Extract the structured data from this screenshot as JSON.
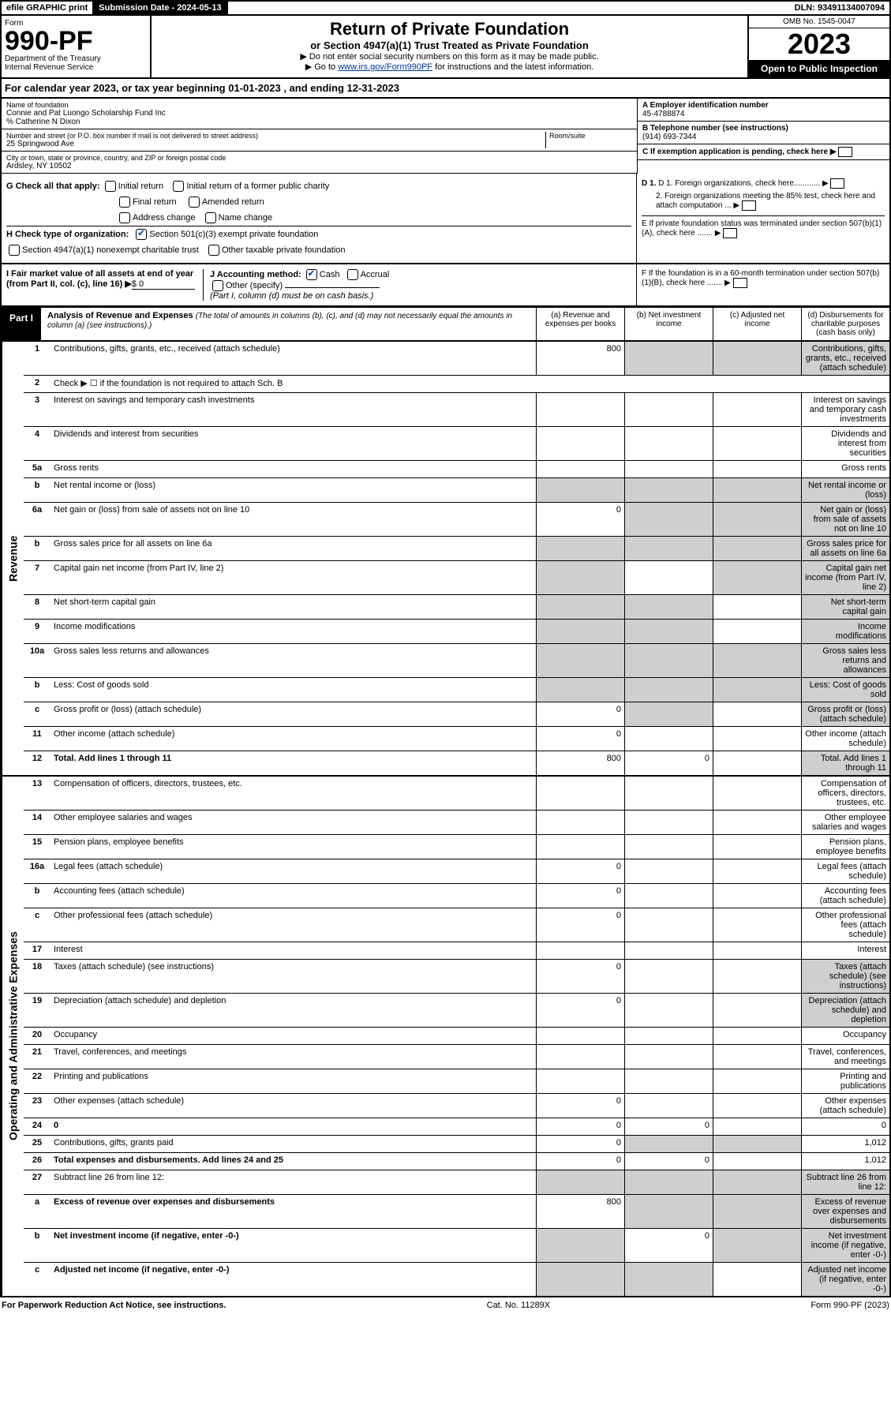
{
  "topbar": {
    "efile": "efile GRAPHIC print",
    "submission": "Submission Date - 2024-05-13",
    "dln": "DLN: 93491134007094"
  },
  "header": {
    "form": "Form",
    "number": "990-PF",
    "dept1": "Department of the Treasury",
    "dept2": "Internal Revenue Service",
    "title": "Return of Private Foundation",
    "subtitle": "or Section 4947(a)(1) Trust Treated as Private Foundation",
    "instr1": "▶ Do not enter social security numbers on this form as it may be made public.",
    "instr2_pre": "▶ Go to ",
    "instr2_link": "www.irs.gov/Form990PF",
    "instr2_post": " for instructions and the latest information.",
    "omb": "OMB No. 1545-0047",
    "year": "2023",
    "open": "Open to Public Inspection"
  },
  "cal_year": "For calendar year 2023, or tax year beginning 01-01-2023                          , and ending 12-31-2023",
  "info": {
    "name_label": "Name of foundation",
    "name": "Connie and Pat Luongo Scholarship Fund Inc",
    "care_of": "% Catherine N Dixon",
    "street_label": "Number and street (or P.O. box number if mail is not delivered to street address)",
    "street": "25 Springwood Ave",
    "room_label": "Room/suite",
    "city_label": "City or town, state or province, country, and ZIP or foreign postal code",
    "city": "Ardsley, NY  10502",
    "a_label": "A Employer identification number",
    "a_value": "45-4788874",
    "b_label": "B Telephone number (see instructions)",
    "b_value": "(914) 693-7344",
    "c_label": "C If exemption application is pending, check here"
  },
  "checks": {
    "g_label": "G Check all that apply:",
    "g_opts": [
      "Initial return",
      "Initial return of a former public charity",
      "Final return",
      "Amended return",
      "Address change",
      "Name change"
    ],
    "h_label": "H Check type of organization:",
    "h_opt1": "Section 501(c)(3) exempt private foundation",
    "h_opt2": "Section 4947(a)(1) nonexempt charitable trust",
    "h_opt3": "Other taxable private foundation",
    "i_label": "I Fair market value of all assets at end of year (from Part II, col. (c), line 16)",
    "i_value": "$  0",
    "j_label": "J Accounting method:",
    "j_cash": "Cash",
    "j_accrual": "Accrual",
    "j_other": "Other (specify)",
    "j_note": "(Part I, column (d) must be on cash basis.)",
    "d1": "D 1. Foreign organizations, check here............",
    "d2": "2. Foreign organizations meeting the 85% test, check here and attach computation ...",
    "e": "E  If private foundation status was terminated under section 507(b)(1)(A), check here .......",
    "f": "F  If the foundation is in a 60-month termination under section 507(b)(1)(B), check here ......."
  },
  "part1": {
    "label": "Part I",
    "title": "Analysis of Revenue and Expenses",
    "note": "(The total of amounts in columns (b), (c), and (d) may not necessarily equal the amounts in column (a) (see instructions).)",
    "col_a": "(a)   Revenue and expenses per books",
    "col_b": "(b)   Net investment income",
    "col_c": "(c)   Adjusted net income",
    "col_d": "(d)   Disbursements for charitable purposes (cash basis only)"
  },
  "side_labels": {
    "rev": "Revenue",
    "exp": "Operating and Administrative Expenses"
  },
  "rows": [
    {
      "n": "1",
      "d": "Contributions, gifts, grants, etc., received (attach schedule)",
      "a": "800",
      "grey": [
        "b",
        "c",
        "d"
      ]
    },
    {
      "n": "2",
      "d": "Check ▶ ☐ if the foundation is not required to attach Sch. B",
      "nocols": true
    },
    {
      "n": "3",
      "d": "Interest on savings and temporary cash investments"
    },
    {
      "n": "4",
      "d": "Dividends and interest from securities"
    },
    {
      "n": "5a",
      "d": "Gross rents"
    },
    {
      "n": "b",
      "d": "Net rental income or (loss)",
      "short": true,
      "grey": [
        "a",
        "b",
        "c",
        "d"
      ]
    },
    {
      "n": "6a",
      "d": "Net gain or (loss) from sale of assets not on line 10",
      "a": "0",
      "grey": [
        "b",
        "c",
        "d"
      ]
    },
    {
      "n": "b",
      "d": "Gross sales price for all assets on line 6a",
      "short": true,
      "grey": [
        "a",
        "b",
        "c",
        "d"
      ]
    },
    {
      "n": "7",
      "d": "Capital gain net income (from Part IV, line 2)",
      "grey": [
        "a",
        "c",
        "d"
      ]
    },
    {
      "n": "8",
      "d": "Net short-term capital gain",
      "grey": [
        "a",
        "b",
        "d"
      ]
    },
    {
      "n": "9",
      "d": "Income modifications",
      "grey": [
        "a",
        "b",
        "d"
      ]
    },
    {
      "n": "10a",
      "d": "Gross sales less returns and allowances",
      "short": true,
      "grey": [
        "a",
        "b",
        "c",
        "d"
      ]
    },
    {
      "n": "b",
      "d": "Less: Cost of goods sold",
      "short": true,
      "grey": [
        "a",
        "b",
        "c",
        "d"
      ]
    },
    {
      "n": "c",
      "d": "Gross profit or (loss) (attach schedule)",
      "a": "0",
      "grey": [
        "b",
        "d"
      ]
    },
    {
      "n": "11",
      "d": "Other income (attach schedule)",
      "a": "0"
    },
    {
      "n": "12",
      "d": "Total. Add lines 1 through 11",
      "bold": true,
      "a": "800",
      "b": "0",
      "grey": [
        "d"
      ]
    }
  ],
  "exp_rows": [
    {
      "n": "13",
      "d": "Compensation of officers, directors, trustees, etc."
    },
    {
      "n": "14",
      "d": "Other employee salaries and wages"
    },
    {
      "n": "15",
      "d": "Pension plans, employee benefits"
    },
    {
      "n": "16a",
      "d": "Legal fees (attach schedule)",
      "a": "0"
    },
    {
      "n": "b",
      "d": "Accounting fees (attach schedule)",
      "a": "0"
    },
    {
      "n": "c",
      "d": "Other professional fees (attach schedule)",
      "a": "0"
    },
    {
      "n": "17",
      "d": "Interest"
    },
    {
      "n": "18",
      "d": "Taxes (attach schedule) (see instructions)",
      "a": "0",
      "grey": [
        "d"
      ]
    },
    {
      "n": "19",
      "d": "Depreciation (attach schedule) and depletion",
      "a": "0",
      "grey": [
        "d"
      ]
    },
    {
      "n": "20",
      "d": "Occupancy"
    },
    {
      "n": "21",
      "d": "Travel, conferences, and meetings"
    },
    {
      "n": "22",
      "d": "Printing and publications"
    },
    {
      "n": "23",
      "d": "Other expenses (attach schedule)",
      "a": "0"
    },
    {
      "n": "24",
      "d": "0",
      "bold": true,
      "a": "0",
      "b": "0"
    },
    {
      "n": "25",
      "d": "Contributions, gifts, grants paid",
      "a": "0",
      "grey": [
        "b",
        "c"
      ],
      "dval": "1,012"
    },
    {
      "n": "26",
      "d": "Total expenses and disbursements. Add lines 24 and 25",
      "bold": true,
      "a": "0",
      "b": "0",
      "dval": "1,012"
    },
    {
      "n": "27",
      "d": "Subtract line 26 from line 12:",
      "grey": [
        "a",
        "b",
        "c",
        "d"
      ]
    },
    {
      "n": "a",
      "d": "Excess of revenue over expenses and disbursements",
      "bold": true,
      "a": "800",
      "grey": [
        "b",
        "c",
        "d"
      ]
    },
    {
      "n": "b",
      "d": "Net investment income (if negative, enter -0-)",
      "bold": true,
      "grey": [
        "a",
        "c",
        "d"
      ],
      "b": "0"
    },
    {
      "n": "c",
      "d": "Adjusted net income (if negative, enter -0-)",
      "bold": true,
      "grey": [
        "a",
        "b",
        "d"
      ]
    }
  ],
  "footer": {
    "left": "For Paperwork Reduction Act Notice, see instructions.",
    "center": "Cat. No. 11289X",
    "right": "Form 990-PF (2023)"
  }
}
